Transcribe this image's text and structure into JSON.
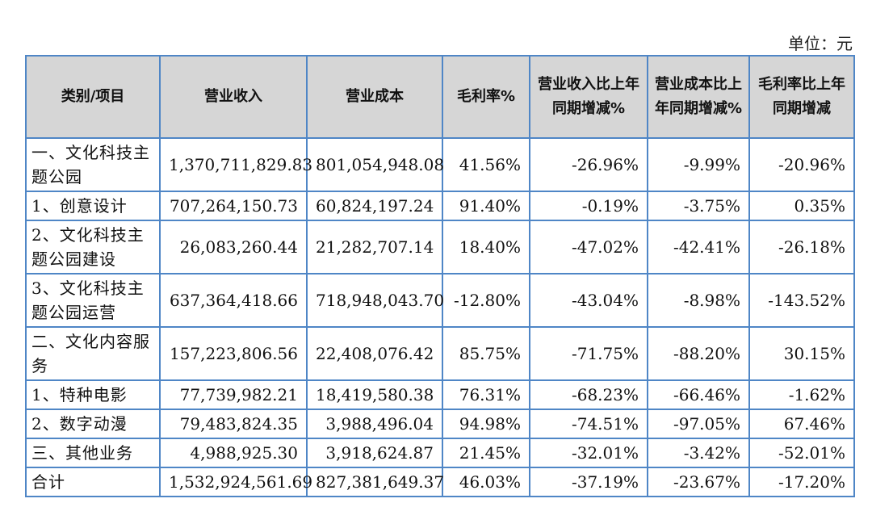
{
  "unit_label": "单位：元",
  "headers": [
    "类别/项目",
    "营业收入",
    "营业成本",
    "毛利率%",
    "营业收入比上年同期增减%",
    "营业成本比上年同期增减%",
    "毛利率比上年同期增减"
  ],
  "rows": [
    {
      "label": "一、文化科技主题公园",
      "revenue": "1,370,711,829.83",
      "cost": "801,054,948.08",
      "margin": "41.56%",
      "rev_change": "-26.96%",
      "cost_change": "-9.99%",
      "margin_change": "-20.96%"
    },
    {
      "label": "1、创意设计",
      "revenue": "707,264,150.73",
      "cost": "60,824,197.24",
      "margin": "91.40%",
      "rev_change": "-0.19%",
      "cost_change": "-3.75%",
      "margin_change": "0.35%"
    },
    {
      "label": "2、文化科技主题公园建设",
      "revenue": "26,083,260.44",
      "cost": "21,282,707.14",
      "margin": "18.40%",
      "rev_change": "-47.02%",
      "cost_change": "-42.41%",
      "margin_change": "-26.18%"
    },
    {
      "label": "3、文化科技主题公园运营",
      "revenue": "637,364,418.66",
      "cost": "718,948,043.70",
      "margin": "-12.80%",
      "rev_change": "-43.04%",
      "cost_change": "-8.98%",
      "margin_change": "-143.52%"
    },
    {
      "label": "二、文化内容服务",
      "revenue": "157,223,806.56",
      "cost": "22,408,076.42",
      "margin": "85.75%",
      "rev_change": "-71.75%",
      "cost_change": "-88.20%",
      "margin_change": "30.15%"
    },
    {
      "label": "1、特种电影",
      "revenue": "77,739,982.21",
      "cost": "18,419,580.38",
      "margin": "76.31%",
      "rev_change": "-68.23%",
      "cost_change": "-66.46%",
      "margin_change": "-1.62%"
    },
    {
      "label": "2、数字动漫",
      "revenue": "79,483,824.35",
      "cost": "3,988,496.04",
      "margin": "94.98%",
      "rev_change": "-74.51%",
      "cost_change": "-97.05%",
      "margin_change": "67.46%"
    },
    {
      "label": "三、其他业务",
      "revenue": "4,988,925.30",
      "cost": "3,918,624.87",
      "margin": "21.45%",
      "rev_change": "-32.01%",
      "cost_change": "-3.42%",
      "margin_change": "-52.01%"
    },
    {
      "label": "合计",
      "revenue": "1,532,924,561.69",
      "cost": "827,381,649.37",
      "margin": "46.03%",
      "rev_change": "-37.19%",
      "cost_change": "-23.67%",
      "margin_change": "-17.20%"
    }
  ]
}
